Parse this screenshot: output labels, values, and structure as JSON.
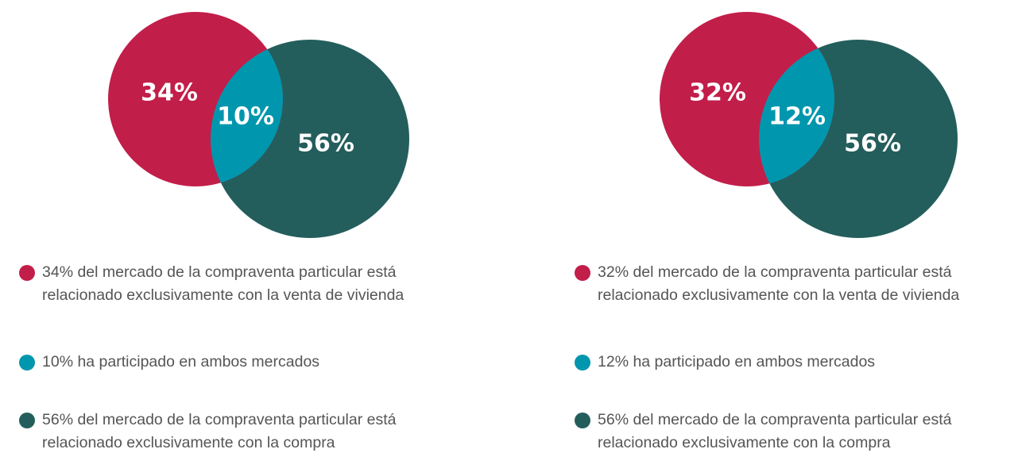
{
  "chart_data": [
    {
      "type": "venn",
      "series": [
        {
          "name": "34% del mercado de la compraventa particular está relacionado exclusivamente con la venta de vivienda",
          "color": "#c21e4a",
          "values": [
            34
          ],
          "value_labels": [
            "34%"
          ]
        },
        {
          "name": "10% ha participado en ambos mercados",
          "color": "#0096ae",
          "values": [
            10
          ],
          "value_labels": [
            "10%"
          ]
        },
        {
          "name": "56% del mercado de la compraventa particular está relacionado exclusivamente con la compra",
          "color": "#245e5c",
          "values": [
            56
          ],
          "value_labels": [
            "56%"
          ]
        }
      ]
    },
    {
      "type": "venn",
      "series": [
        {
          "name": "32% del mercado de la compraventa particular está relacionado exclusivamente con la venta de vivienda",
          "color": "#c21e4a",
          "values": [
            32
          ],
          "value_labels": [
            "32%"
          ]
        },
        {
          "name": "12% ha participado en ambos mercados",
          "color": "#0096ae",
          "values": [
            12
          ],
          "value_labels": [
            "12%"
          ]
        },
        {
          "name": "56% del mercado de la compraventa particular está relacionado exclusivamente con la compra",
          "color": "#245e5c",
          "values": [
            56
          ],
          "value_labels": [
            "56%"
          ]
        }
      ]
    }
  ]
}
